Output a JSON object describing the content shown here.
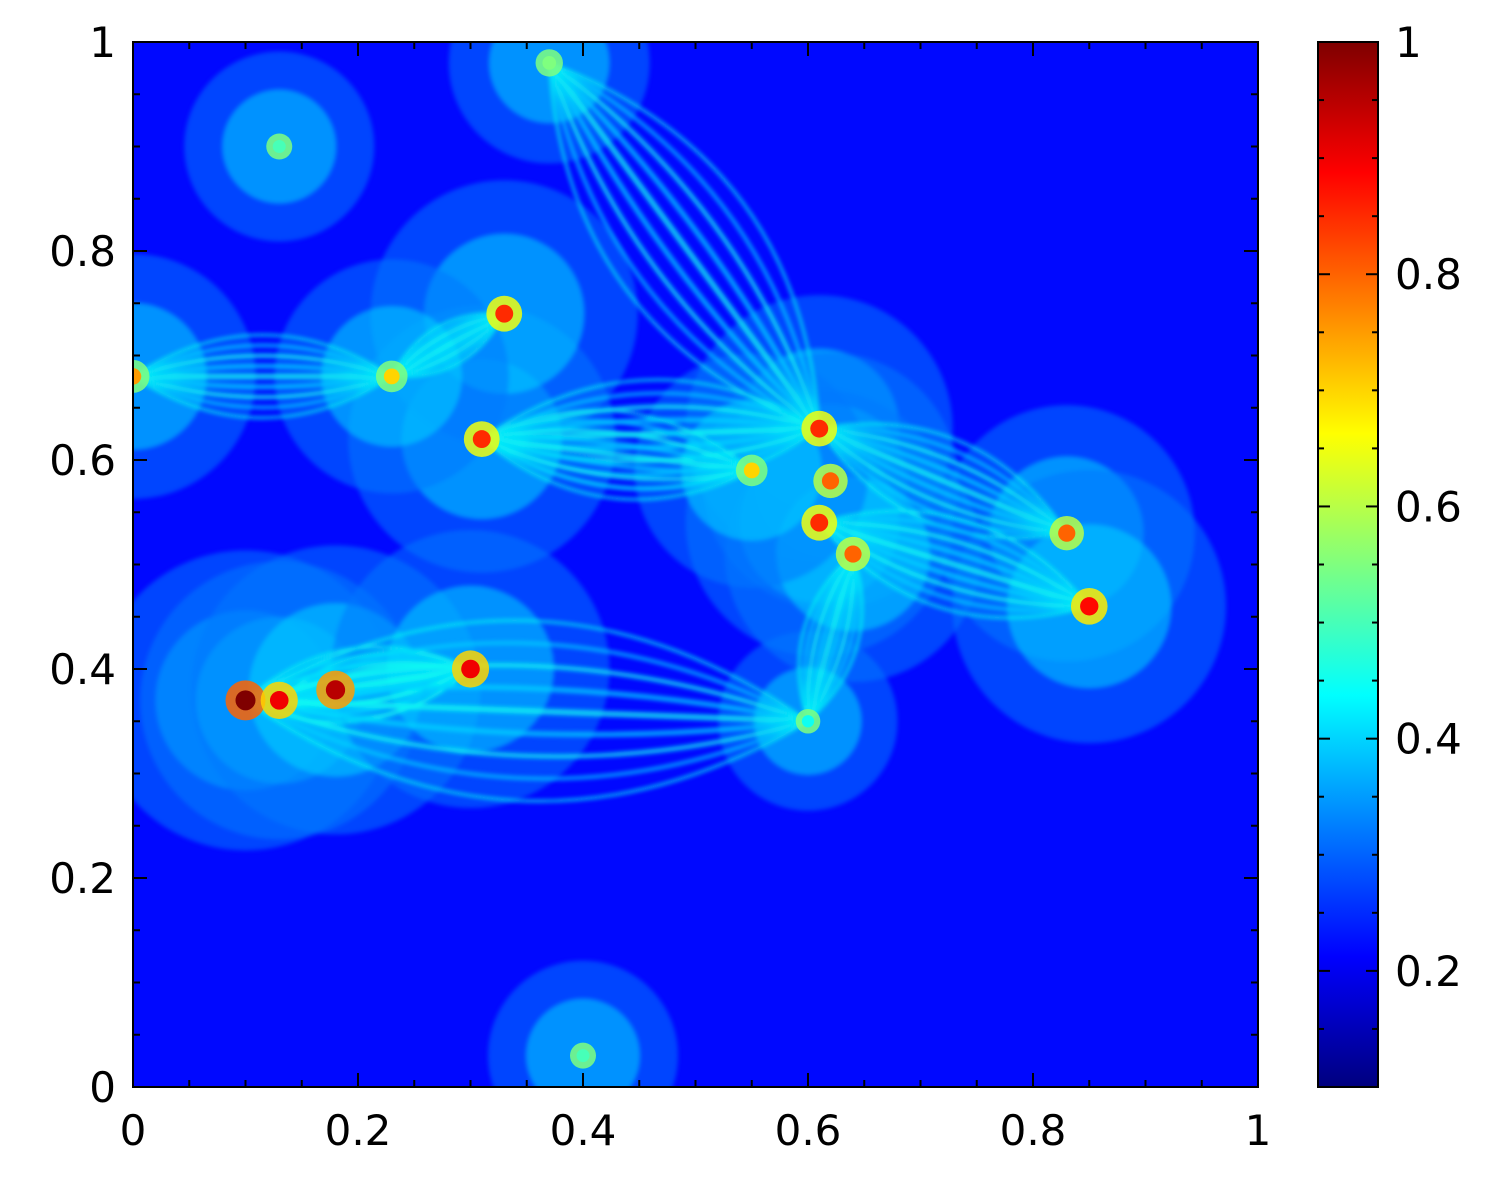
{
  "chart_data": {
    "type": "heatmap",
    "title": "",
    "xlabel": "",
    "ylabel": "",
    "xlim": [
      0,
      1
    ],
    "ylim": [
      0,
      1
    ],
    "x_ticks": [
      0,
      0.2,
      0.4,
      0.6,
      0.8,
      1
    ],
    "y_ticks": [
      0,
      0.2,
      0.4,
      0.6,
      0.8,
      1
    ],
    "x_tick_labels": [
      "0",
      "0.2",
      "0.4",
      "0.6",
      "0.8",
      "1"
    ],
    "y_tick_labels": [
      "0",
      "0.2",
      "0.4",
      "0.6",
      "0.8",
      "1"
    ],
    "grid": false,
    "colormap": "jet",
    "colorbar": {
      "position": "right",
      "range": [
        0.1,
        1
      ],
      "ticks": [
        0.2,
        0.4,
        0.6,
        0.8,
        1
      ],
      "tick_labels": [
        "0.2",
        "0.4",
        "0.6",
        "0.8",
        "1"
      ],
      "colors": [
        "#00007f",
        "#0000ff",
        "#007fff",
        "#00ffff",
        "#7fff7f",
        "#ffff00",
        "#ff7f00",
        "#ff0000",
        "#7f0000"
      ]
    },
    "background_value": 0.22,
    "features": [
      {
        "x": 0.1,
        "y": 0.37,
        "value": 1.0
      },
      {
        "x": 0.13,
        "y": 0.37,
        "value": 0.9
      },
      {
        "x": 0.18,
        "y": 0.38,
        "value": 0.95
      },
      {
        "x": 0.3,
        "y": 0.4,
        "value": 0.9
      },
      {
        "x": 0.31,
        "y": 0.62,
        "value": 0.85
      },
      {
        "x": 0.33,
        "y": 0.74,
        "value": 0.85
      },
      {
        "x": 0.23,
        "y": 0.68,
        "value": 0.7
      },
      {
        "x": 0.0,
        "y": 0.68,
        "value": 0.75
      },
      {
        "x": 0.61,
        "y": 0.63,
        "value": 0.85
      },
      {
        "x": 0.62,
        "y": 0.58,
        "value": 0.8
      },
      {
        "x": 0.61,
        "y": 0.54,
        "value": 0.85
      },
      {
        "x": 0.64,
        "y": 0.51,
        "value": 0.8
      },
      {
        "x": 0.55,
        "y": 0.59,
        "value": 0.7
      },
      {
        "x": 0.83,
        "y": 0.53,
        "value": 0.8
      },
      {
        "x": 0.85,
        "y": 0.46,
        "value": 0.88
      },
      {
        "x": 0.6,
        "y": 0.35,
        "value": 0.45
      },
      {
        "x": 0.4,
        "y": 0.03,
        "value": 0.5
      },
      {
        "x": 0.37,
        "y": 0.98,
        "value": 0.55
      },
      {
        "x": 0.13,
        "y": 0.9,
        "value": 0.5
      }
    ]
  }
}
